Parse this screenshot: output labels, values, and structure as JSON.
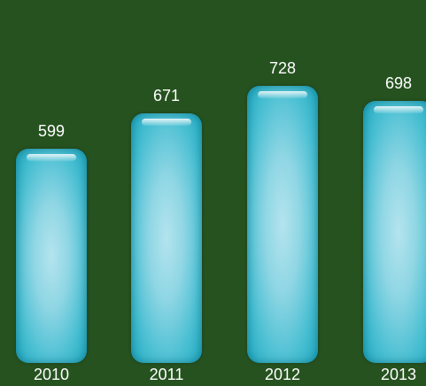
{
  "chart_data": {
    "type": "bar",
    "categories": [
      "2010",
      "2011",
      "2012",
      "2013"
    ],
    "values": [
      599,
      671,
      728,
      698
    ],
    "value_labels": [
      "599",
      "671",
      "728",
      "698"
    ],
    "title": "",
    "xlabel": "",
    "ylabel": "",
    "grid": false,
    "legend": "none",
    "colors": {
      "background": "#265220",
      "bar": "#4cc0d3",
      "text": "#ffffff"
    }
  }
}
